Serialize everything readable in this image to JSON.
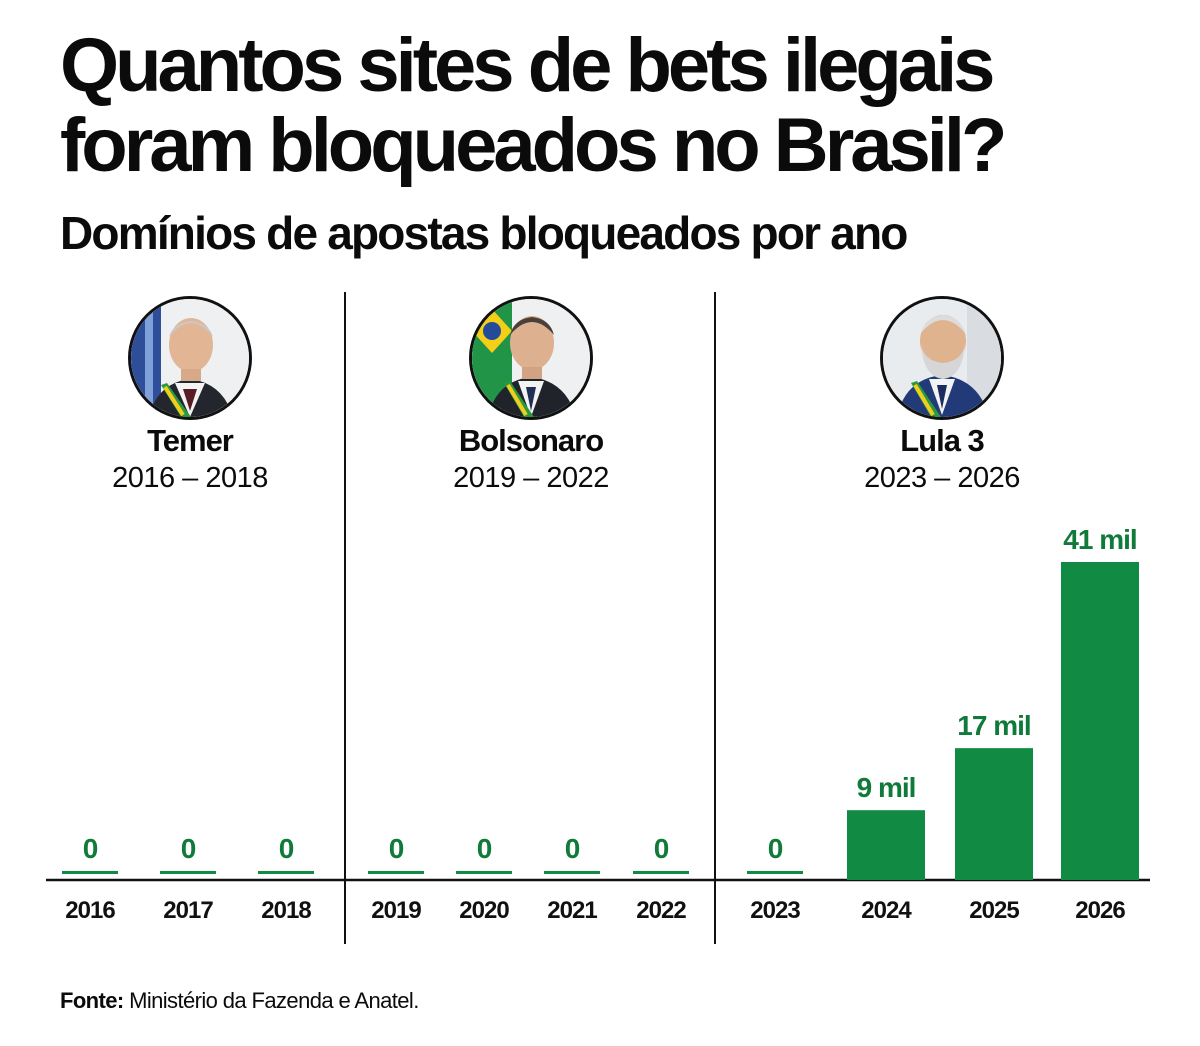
{
  "header": {
    "title_line1": "Quantos sites de bets ilegais",
    "title_line2": "foram bloqueados no Brasil?",
    "subtitle": "Domínios de apostas bloqueados por ano"
  },
  "eras": [
    {
      "name": "Temer",
      "years": "2016 – 2018"
    },
    {
      "name": "Bolsonaro",
      "years": "2019 – 2022"
    },
    {
      "name": "Lula 3",
      "years": "2023 – 2026"
    }
  ],
  "chart_data": {
    "type": "bar",
    "categories": [
      "2016",
      "2017",
      "2018",
      "2019",
      "2020",
      "2021",
      "2022",
      "2023",
      "2024",
      "2025",
      "2026"
    ],
    "values": [
      0,
      0,
      0,
      0,
      0,
      0,
      0,
      0,
      9000,
      17000,
      41000
    ],
    "data_labels": [
      "0",
      "0",
      "0",
      "0",
      "0",
      "0",
      "0",
      "0",
      "9 mil",
      "17 mil",
      "41 mil"
    ],
    "title": "Quantos sites de bets ilegais foram bloqueados no Brasil?",
    "subtitle": "Domínios de apostas bloqueados por ano",
    "xlabel": "",
    "ylabel": "",
    "ylim": [
      0,
      41000
    ],
    "grid": false,
    "bar_color": "#118a43",
    "label_color": "#0f7a3a"
  },
  "footer": {
    "source_label": "Fonte:",
    "source_text": "Ministério da Fazenda e Anatel."
  }
}
